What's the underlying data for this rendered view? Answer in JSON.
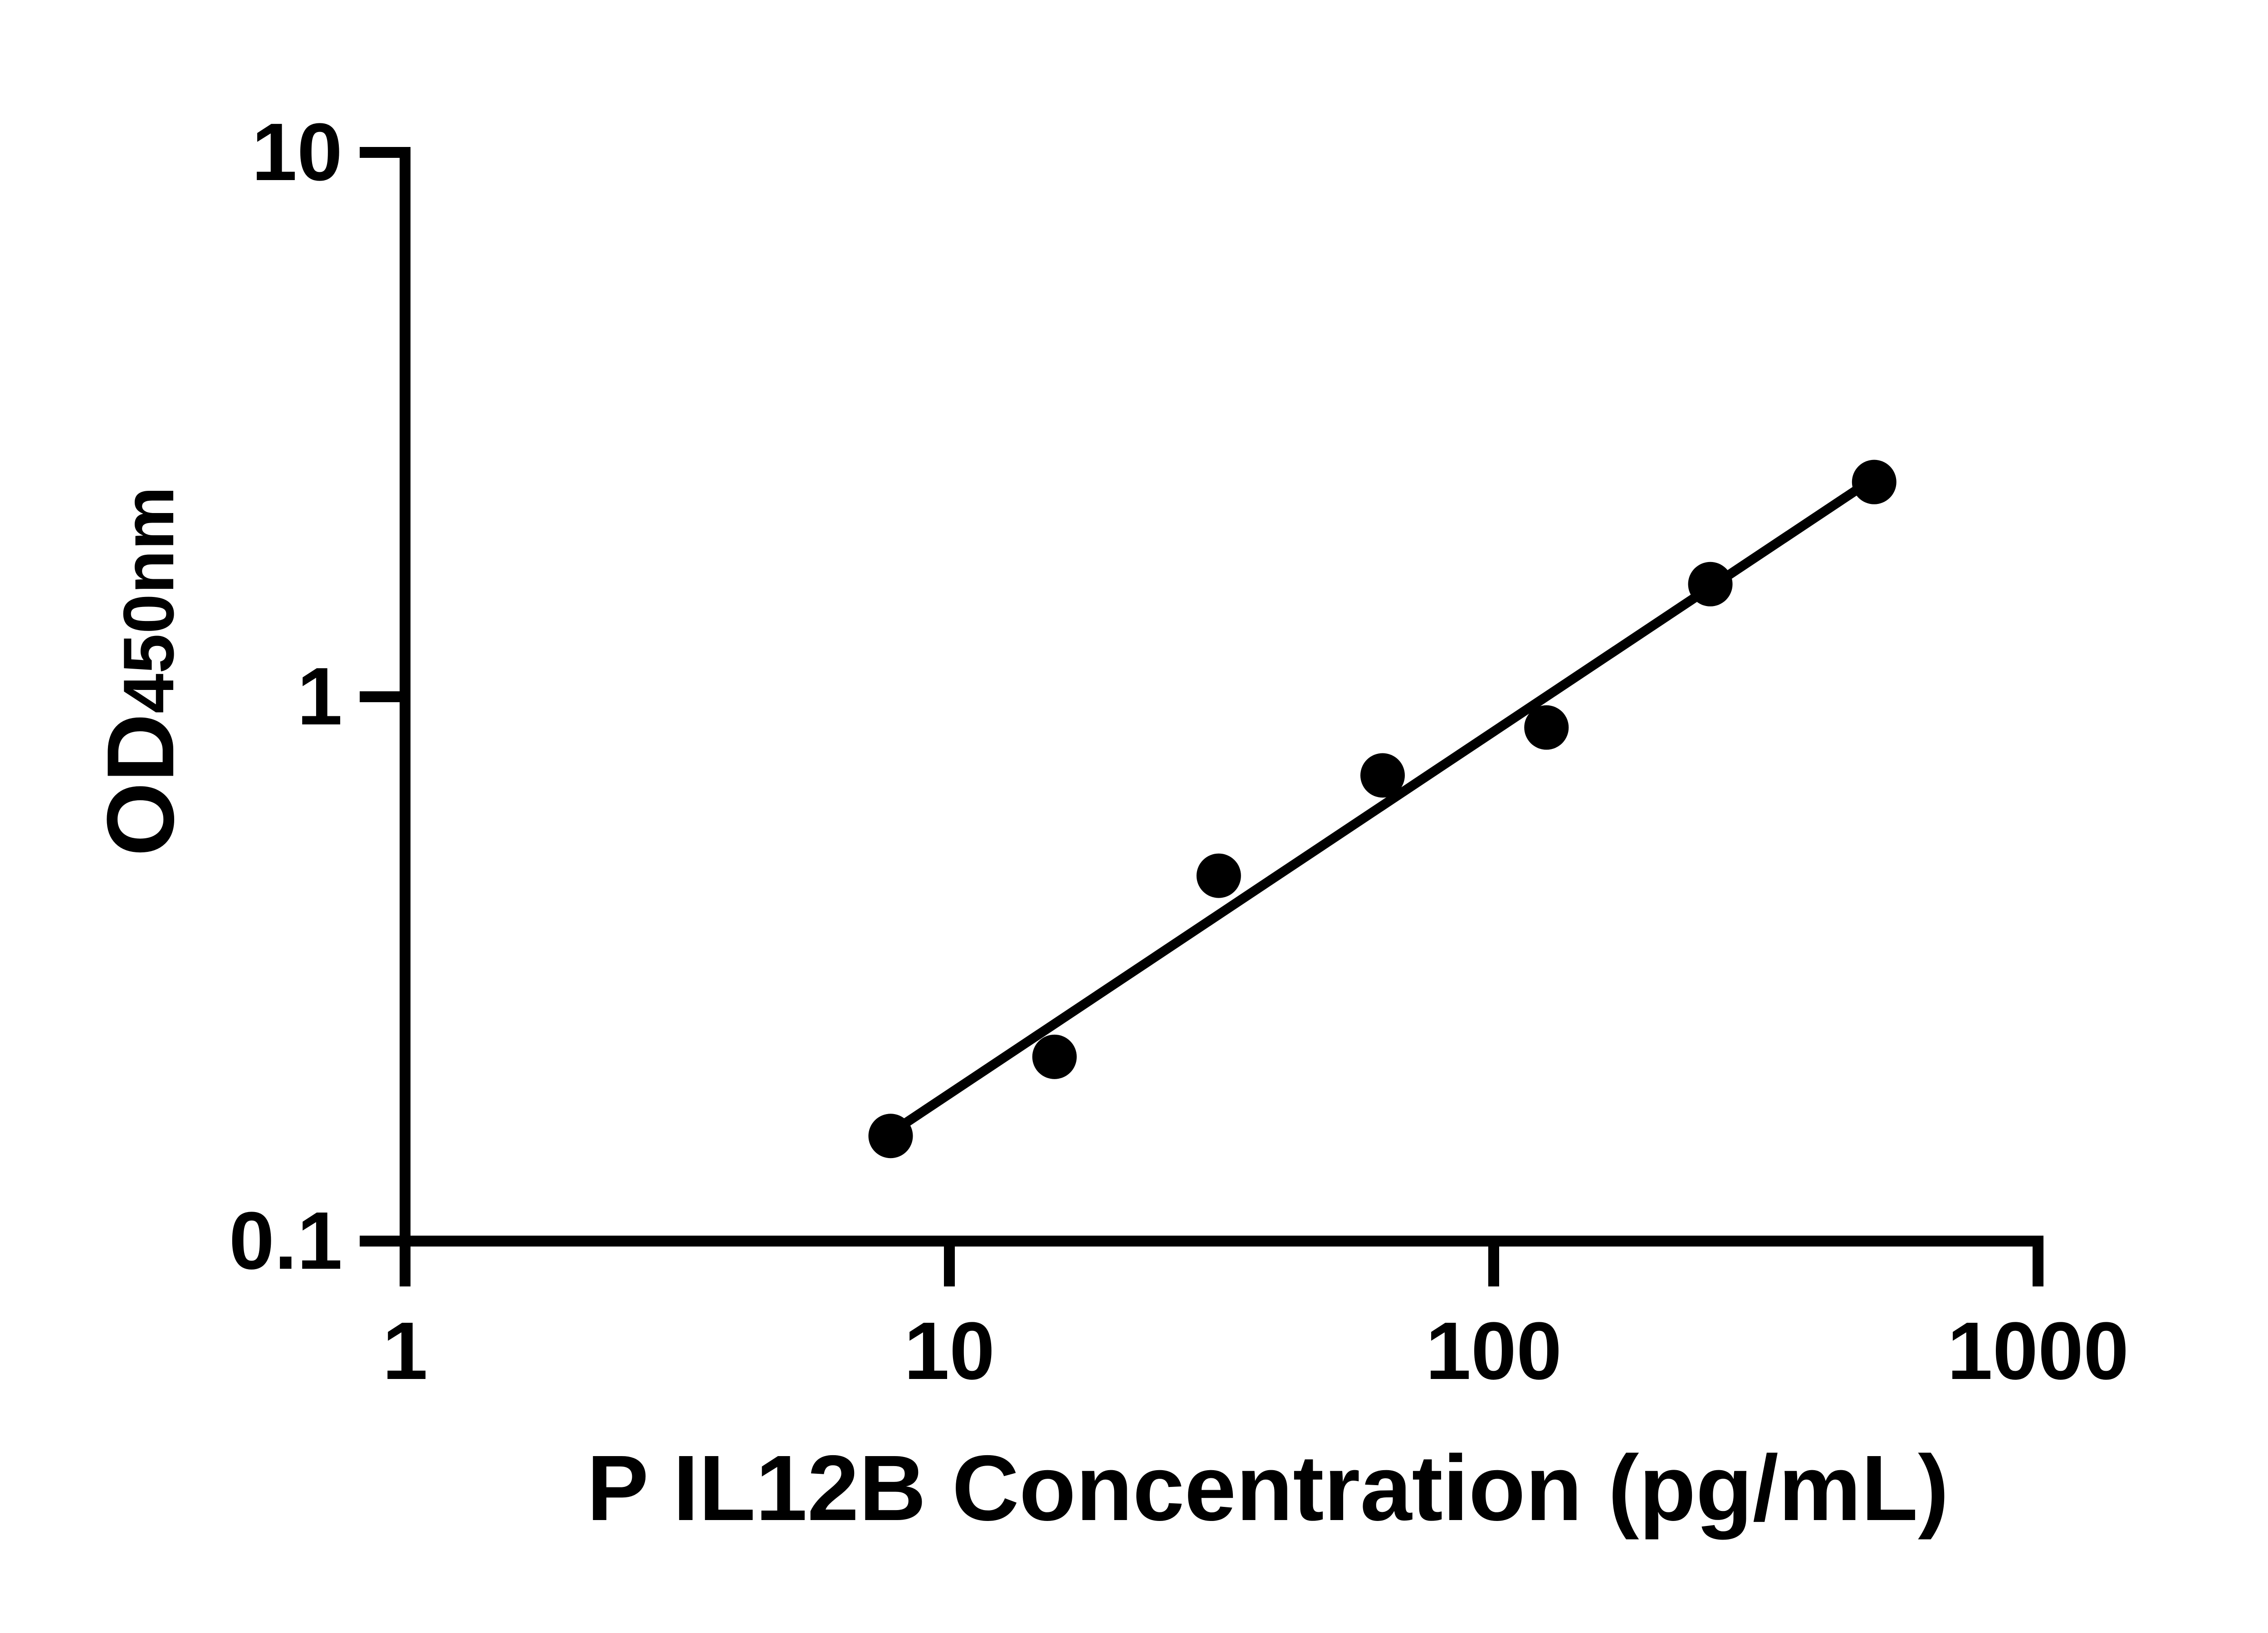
{
  "figure": {
    "background_color": "#ffffff",
    "ink_color": "#000000"
  },
  "chart_data": {
    "type": "scatter",
    "title": "",
    "xlabel": "P IL12B Concentration (pg/mL)",
    "ylabel": "OD",
    "ylabel_subscript": "450nm",
    "x_scale": "log",
    "y_scale": "log",
    "xlim": [
      1,
      1000
    ],
    "ylim": [
      0.1,
      10
    ],
    "grid": false,
    "legend_position": "none",
    "x_ticks": [
      {
        "value": 1,
        "label": "1"
      },
      {
        "value": 10,
        "label": "10"
      },
      {
        "value": 100,
        "label": "100"
      },
      {
        "value": 1000,
        "label": "1000"
      }
    ],
    "y_ticks": [
      {
        "value": 10,
        "label": "10"
      },
      {
        "value": 1,
        "label": "1"
      },
      {
        "value": 0.1,
        "label": "0.1"
      }
    ],
    "series": [
      {
        "name": "standard-curve-points",
        "marker": "filled-circle",
        "color": "#000000",
        "x": [
          7.8,
          15.6,
          31.25,
          62.5,
          125,
          250,
          500
        ],
        "y": [
          0.156,
          0.218,
          0.469,
          0.717,
          0.878,
          1.61,
          2.48
        ]
      }
    ],
    "trend_line": {
      "name": "linear-fit-loglog",
      "color": "#000000",
      "x_start": 7.8,
      "y_start": 0.158,
      "x_end": 500,
      "y_end": 2.52
    }
  }
}
